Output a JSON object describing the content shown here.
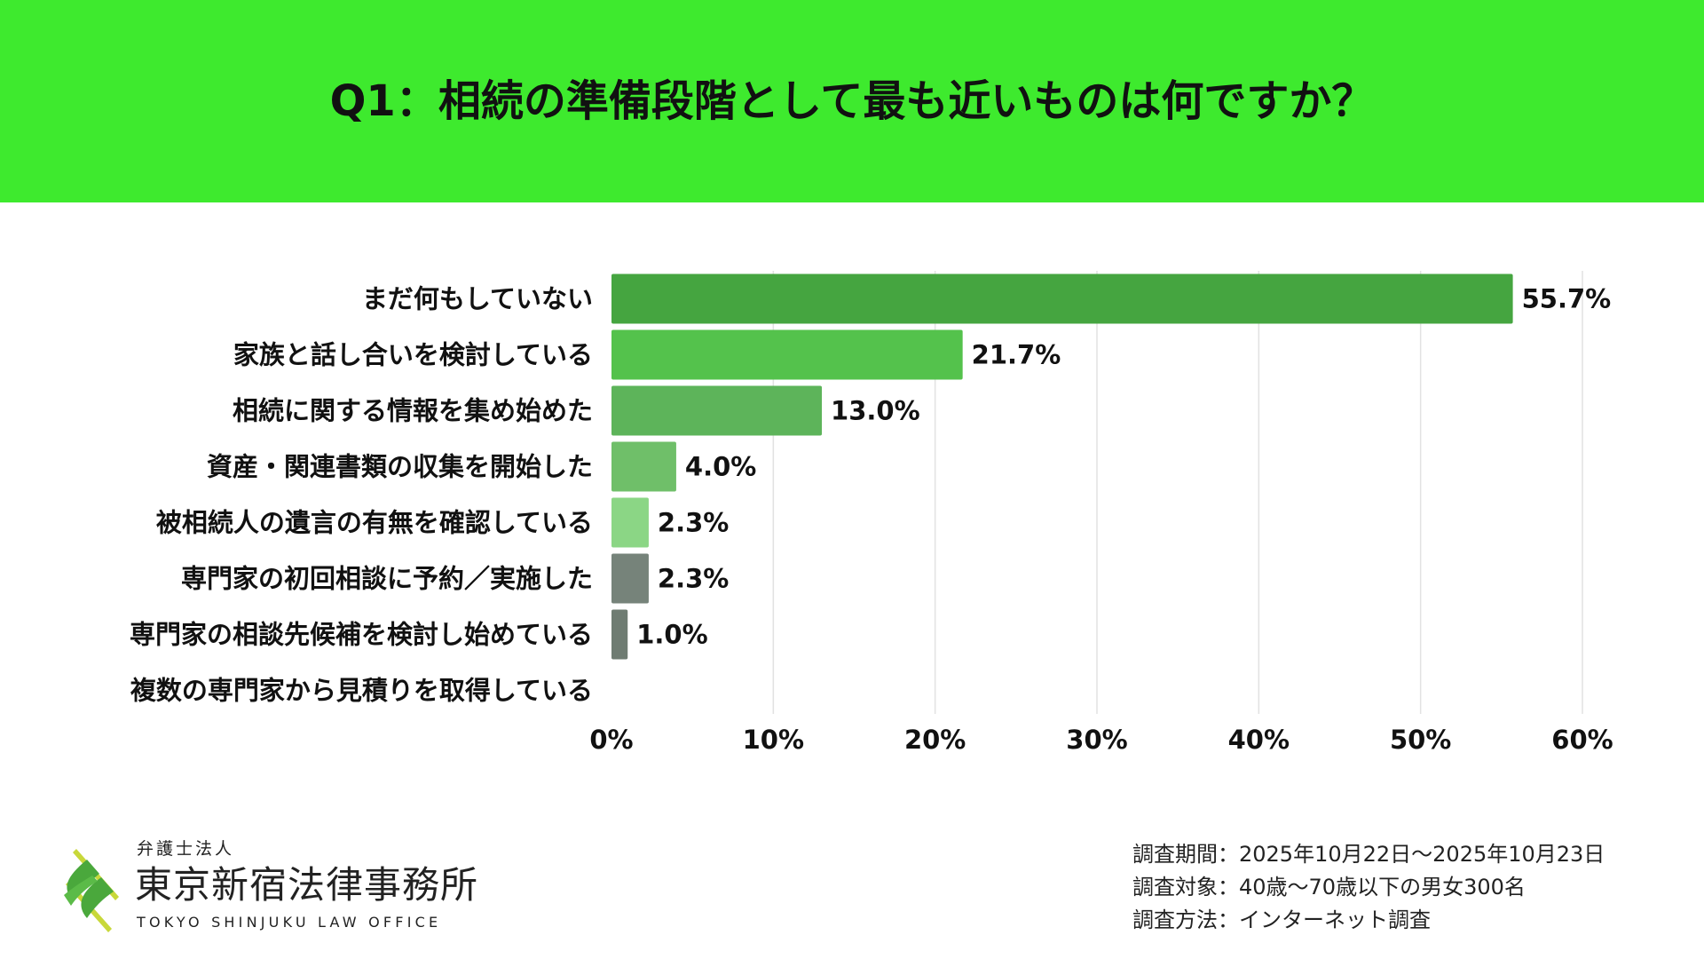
{
  "header": {
    "title": "Q1：相続の準備段階として最も近いものは何ですか？",
    "color": "#3eea2e"
  },
  "chart_data": {
    "type": "bar",
    "orientation": "horizontal",
    "title": "Q1：相続の準備段階として最も近いものは何ですか？",
    "categories": [
      "まだ何もしていない",
      "家族と話し合いを検討している",
      "相続に関する情報を集め始めた",
      "資産・関連書類の収集を開始した",
      "被相続人の遺言の有無を確認している",
      "専門家の初回相談に予約／実施した",
      "専門家の相談先候補を検討し始めている",
      "複数の専門家から見積りを取得している"
    ],
    "values": [
      55.7,
      21.7,
      13.0,
      4.0,
      2.3,
      2.3,
      1.0,
      0.0
    ],
    "value_labels": [
      "55.7%",
      "21.7%",
      "13.0%",
      "4.0%",
      "2.3%",
      "2.3%",
      "1.0%",
      ""
    ],
    "colors": [
      "#45a540",
      "#54c24c",
      "#5db45a",
      "#6fbf69",
      "#8bd685",
      "#76837a",
      "#6f7c72",
      "#6f7c72"
    ],
    "xlim": [
      0,
      60
    ],
    "xticks": [
      0,
      10,
      20,
      30,
      40,
      50,
      60
    ],
    "xtick_labels": [
      "0%",
      "10%",
      "20%",
      "30%",
      "40%",
      "50%",
      "60%"
    ],
    "grid": true,
    "xlabel": "",
    "ylabel": ""
  },
  "footer": {
    "period": "調査期間：2025年10月22日〜2025年10月23日",
    "target": "調査対象：40歳〜70歳以下の男女300名",
    "method": "調査方法：インターネット調査"
  },
  "logo": {
    "sub": "弁護士法人",
    "main": "東京新宿法律事務所",
    "en": "TOKYO SHINJUKU LAW OFFICE"
  }
}
